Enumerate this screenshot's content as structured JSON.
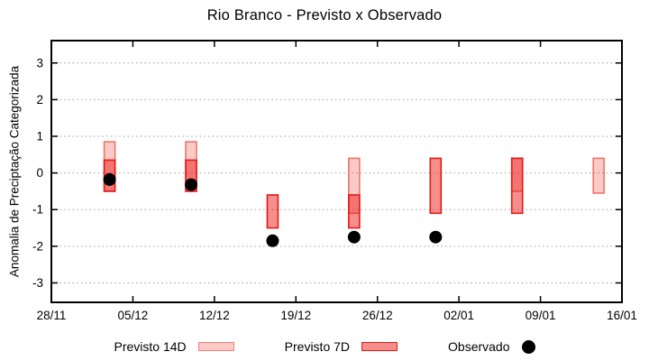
{
  "title": "Rio Branco - Previsto x Observado",
  "colors": {
    "background": "#ffffff",
    "axis": "#000000",
    "grid": "#9e9e9e",
    "previsto14d_fill": "#facac6",
    "previsto14d_border": "#f08078",
    "previsto7d_fill": "#f58e8c",
    "previsto7d_border": "#e41b17",
    "overlap_fill": "#f27976",
    "observado": "#000000"
  },
  "legend": {
    "items": [
      {
        "label": "Previsto 14D",
        "shape": "rect",
        "fill": "#facac6",
        "border": "#f08078"
      },
      {
        "label": "Previsto 7D",
        "shape": "rect",
        "fill": "#f58e8c",
        "border": "#e41b17"
      },
      {
        "label": "Observado",
        "shape": "dot",
        "fill": "#000000",
        "border": "#000000"
      }
    ]
  },
  "chart_data": {
    "type": "bar",
    "subtype": "floating-range-bars-with-scatter",
    "title": "Rio Branco - Previsto x Observado",
    "xlabel": "",
    "ylabel": "Anomalia de Preciptação Categorizada",
    "x_tick_labels": [
      "28/11",
      "05/12",
      "12/12",
      "19/12",
      "26/12",
      "02/01",
      "09/01",
      "16/01"
    ],
    "x_tick_days": [
      0,
      7,
      14,
      21,
      28,
      35,
      42,
      49
    ],
    "xlim_days": [
      0,
      49
    ],
    "y_ticks": [
      3,
      2,
      1,
      0,
      -1,
      -2,
      -3
    ],
    "ylim": [
      -3.53,
      3.61
    ],
    "grid": "horizontal dotted lines at every integer y tick",
    "legend_position": "bottom center",
    "series": [
      {
        "name": "Previsto 14D",
        "type": "range-bar",
        "fill_rgba": "rgba(235,60,45,0.27)",
        "stroke": "rgba(240,110,100,0.95)",
        "bars": [
          {
            "day": 5,
            "date": "03/12",
            "lo": -0.5,
            "hi": 0.85
          },
          {
            "day": 12,
            "date": "10/12",
            "lo": -0.5,
            "hi": 0.85
          },
          {
            "day": 26,
            "date": "24/12",
            "lo": -1.1,
            "hi": 0.4
          },
          {
            "day": 40,
            "date": "07/01",
            "lo": -0.5,
            "hi": 0.4
          },
          {
            "day": 47,
            "date": "14/01",
            "lo": -0.55,
            "hi": 0.4
          }
        ]
      },
      {
        "name": "Previsto 7D",
        "type": "range-bar",
        "fill_rgba": "rgba(235,30,25,0.5)",
        "stroke": "#e41b17",
        "bars": [
          {
            "day": 5,
            "date": "03/12",
            "lo": -0.5,
            "hi": 0.35
          },
          {
            "day": 12,
            "date": "10/12",
            "lo": -0.5,
            "hi": 0.35
          },
          {
            "day": 19,
            "date": "17/12",
            "lo": -1.5,
            "hi": -0.6
          },
          {
            "day": 26,
            "date": "24/12",
            "lo": -1.5,
            "hi": -0.6
          },
          {
            "day": 33,
            "date": "31/12",
            "lo": -1.1,
            "hi": 0.4
          },
          {
            "day": 40,
            "date": "07/01",
            "lo": -1.1,
            "hi": 0.4
          }
        ]
      },
      {
        "name": "Observado",
        "type": "scatter",
        "fill": "#000000",
        "points": [
          {
            "day": 5,
            "date": "03/12",
            "y": -0.18
          },
          {
            "day": 12,
            "date": "10/12",
            "y": -0.32
          },
          {
            "day": 19,
            "date": "17/12",
            "y": -1.85
          },
          {
            "day": 26,
            "date": "24/12",
            "y": -1.75
          },
          {
            "day": 33,
            "date": "31/12",
            "y": -1.75
          }
        ]
      }
    ]
  }
}
